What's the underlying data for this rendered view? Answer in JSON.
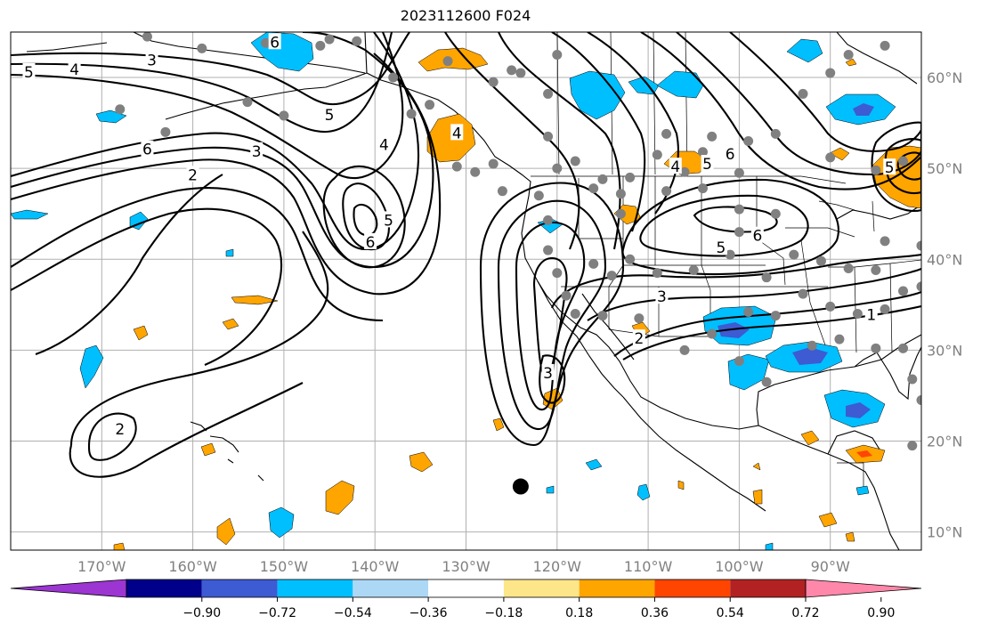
{
  "title": "2023112600 F024",
  "map": {
    "lon_range": [
      -180,
      -80
    ],
    "lat_range": [
      8,
      65
    ],
    "lat_ticks": [
      {
        "value": 10,
        "label": "10°N"
      },
      {
        "value": 20,
        "label": "20°N"
      },
      {
        "value": 30,
        "label": "30°N"
      },
      {
        "value": 40,
        "label": "40°N"
      },
      {
        "value": 50,
        "label": "50°N"
      },
      {
        "value": 60,
        "label": "60°N"
      }
    ],
    "lon_ticks": [
      {
        "value": -170,
        "label": "170°W"
      },
      {
        "value": -160,
        "label": "160°W"
      },
      {
        "value": -150,
        "label": "150°W"
      },
      {
        "value": -140,
        "label": "140°W"
      },
      {
        "value": -130,
        "label": "130°W"
      },
      {
        "value": -120,
        "label": "120°W"
      },
      {
        "value": -110,
        "label": "110°W"
      },
      {
        "value": -100,
        "label": "100°W"
      },
      {
        "value": -90,
        "label": "90°W"
      }
    ],
    "contour_labels": [
      {
        "text": "5",
        "lon": -178,
        "lat": 60.5
      },
      {
        "text": "4",
        "lon": -173,
        "lat": 60.8
      },
      {
        "text": "3",
        "lon": -164.5,
        "lat": 61.8
      },
      {
        "text": "6",
        "lon": -165,
        "lat": 52.0
      },
      {
        "text": "2",
        "lon": -160,
        "lat": 49.2
      },
      {
        "text": "3",
        "lon": -153,
        "lat": 51.8
      },
      {
        "text": "6",
        "lon": -151,
        "lat": 63.8
      },
      {
        "text": "5",
        "lon": -145,
        "lat": 55.8
      },
      {
        "text": "4",
        "lon": -139,
        "lat": 52.5
      },
      {
        "text": "5",
        "lon": -138.5,
        "lat": 44.2
      },
      {
        "text": "6",
        "lon": -140.5,
        "lat": 41.8
      },
      {
        "text": "2",
        "lon": -168,
        "lat": 21.2
      },
      {
        "text": "4",
        "lon": -131,
        "lat": 53.8
      },
      {
        "text": "3",
        "lon": -121,
        "lat": 27.4
      },
      {
        "text": "3",
        "lon": -108.5,
        "lat": 35.8
      },
      {
        "text": "5",
        "lon": -102,
        "lat": 41.2
      },
      {
        "text": "6",
        "lon": -98,
        "lat": 42.5
      },
      {
        "text": "4",
        "lon": -107,
        "lat": 50.1
      },
      {
        "text": "5",
        "lon": -103.5,
        "lat": 50.4
      },
      {
        "text": "6",
        "lon": -101,
        "lat": 51.5
      },
      {
        "text": "1",
        "lon": -85.5,
        "lat": 33.8
      },
      {
        "text": "5",
        "lon": -83.5,
        "lat": 50.0
      },
      {
        "text": "2",
        "lon": -111,
        "lat": 31.2
      }
    ],
    "storm_marker": {
      "lon": -124,
      "lat": 15
    }
  },
  "colorbar": {
    "colors": [
      "#9c35d2",
      "#00008b",
      "#3d5bd3",
      "#00bfff",
      "#add8f5",
      "#ffffff",
      "#fde68a",
      "#ffa500",
      "#ff4500",
      "#b22222",
      "#ff88aa"
    ],
    "tick_labels": [
      "−0.90",
      "−0.72",
      "−0.54",
      "−0.36",
      "−0.18",
      "0.18",
      "0.36",
      "0.54",
      "0.72",
      "0.90"
    ]
  }
}
